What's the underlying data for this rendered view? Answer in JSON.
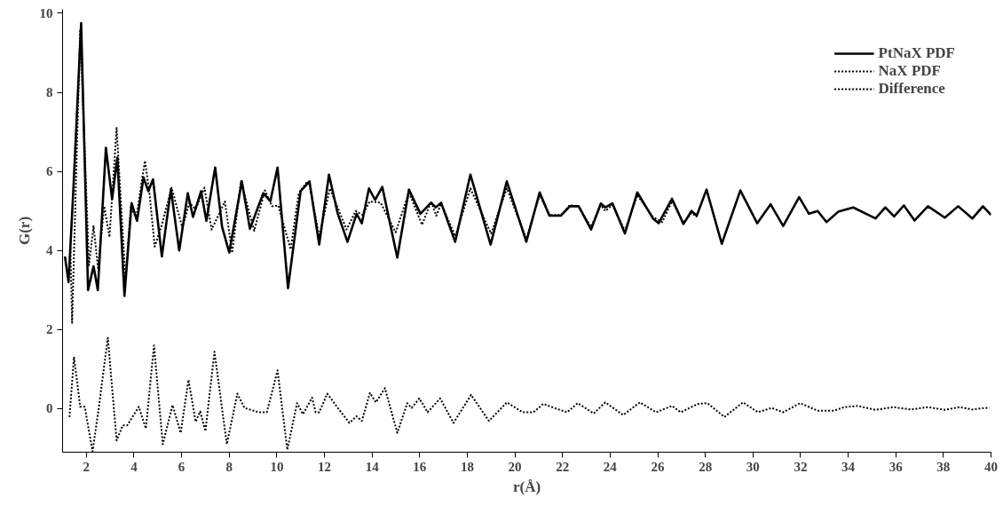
{
  "chart_data": {
    "type": "line",
    "xlabel": "r(Å)",
    "ylabel": "G(r)",
    "xlim": [
      1,
      40
    ],
    "ylim": [
      -1.1,
      10.1
    ],
    "xticks": [
      2,
      4,
      6,
      8,
      10,
      12,
      14,
      16,
      18,
      20,
      22,
      24,
      26,
      28,
      30,
      32,
      34,
      36,
      38,
      40
    ],
    "yticks": [
      0,
      2,
      4,
      6,
      8,
      10
    ],
    "grid": false,
    "legend": "top right",
    "marker": "none",
    "series": [
      {
        "name": "PtNaX PDF",
        "color": "#000000",
        "line_style": "solid",
        "x": [
          1.1,
          1.25,
          1.45,
          1.78,
          2.07,
          2.3,
          2.48,
          2.82,
          3.08,
          3.3,
          3.6,
          3.9,
          4.13,
          4.4,
          4.6,
          4.8,
          5.17,
          5.55,
          5.9,
          6.26,
          6.48,
          6.82,
          7.04,
          7.41,
          7.7,
          8.0,
          8.53,
          8.87,
          9.43,
          9.73,
          10.03,
          10.47,
          11.0,
          11.37,
          11.78,
          12.19,
          12.56,
          12.97,
          13.35,
          13.57,
          13.87,
          14.13,
          14.43,
          15.06,
          15.55,
          16.03,
          16.48,
          16.67,
          16.9,
          17.49,
          18.13,
          18.98,
          19.66,
          20.48,
          21.04,
          21.45,
          21.93,
          22.31,
          22.68,
          23.2,
          23.61,
          23.8,
          24.1,
          24.62,
          25.14,
          25.8,
          26.04,
          26.6,
          27.08,
          27.42,
          27.64,
          28.05,
          28.69,
          29.47,
          30.18,
          30.74,
          31.27,
          31.94,
          32.35,
          32.72,
          33.09,
          33.58,
          34.21,
          35.15,
          35.56,
          35.93,
          36.34,
          36.79,
          37.35,
          38.06,
          38.62,
          39.22,
          39.66,
          40.0
        ],
        "values": [
          3.85,
          3.2,
          5.5,
          9.75,
          3.0,
          3.6,
          3.0,
          6.6,
          5.3,
          6.35,
          2.85,
          5.2,
          4.75,
          5.85,
          5.5,
          5.8,
          3.85,
          5.55,
          4.0,
          5.45,
          4.85,
          5.5,
          4.75,
          6.1,
          4.6,
          3.95,
          5.75,
          4.55,
          5.45,
          5.25,
          6.1,
          3.05,
          5.5,
          5.75,
          4.15,
          5.92,
          4.93,
          4.22,
          4.93,
          4.69,
          5.57,
          5.28,
          5.61,
          3.82,
          5.54,
          4.93,
          5.21,
          5.09,
          5.21,
          4.22,
          5.92,
          4.15,
          5.75,
          4.22,
          5.47,
          4.88,
          4.88,
          5.12,
          5.12,
          4.53,
          5.19,
          5.09,
          5.19,
          4.43,
          5.47,
          4.81,
          4.69,
          5.31,
          4.67,
          5.0,
          4.88,
          5.54,
          4.17,
          5.52,
          4.69,
          5.17,
          4.62,
          5.35,
          4.93,
          5.0,
          4.72,
          4.98,
          5.09,
          4.81,
          5.09,
          4.86,
          5.14,
          4.76,
          5.12,
          4.83,
          5.12,
          4.81,
          5.12,
          4.9
        ]
      },
      {
        "name": "NaX PDF",
        "color": "#000000",
        "line_style": "dotted",
        "x": [
          1.33,
          1.4,
          1.74,
          2.11,
          2.3,
          2.49,
          2.75,
          2.97,
          3.27,
          3.64,
          3.87,
          4.09,
          4.46,
          4.65,
          4.87,
          5.17,
          5.58,
          6.03,
          6.33,
          6.59,
          6.96,
          7.26,
          7.82,
          8.12,
          8.49,
          9.05,
          9.5,
          9.8,
          10.06,
          10.58,
          10.92,
          11.29,
          11.37,
          11.78,
          12.23,
          12.93,
          13.31,
          13.6,
          13.9,
          14.36,
          14.99,
          15.55,
          16.1,
          16.48,
          16.7,
          16.9,
          17.5,
          18.13,
          19.0,
          19.66,
          20.48,
          21.04,
          21.45,
          21.93,
          22.31,
          22.68,
          23.2,
          23.61,
          23.8,
          24.1,
          24.62,
          25.14,
          25.8,
          26.19,
          26.6,
          27.08,
          27.42,
          27.64
        ],
        "values": [
          4.06,
          2.17,
          9.6,
          3.63,
          4.62,
          3.56,
          5.12,
          4.34,
          7.1,
          3.28,
          5.12,
          4.81,
          6.27,
          5.45,
          4.1,
          4.65,
          5.59,
          4.58,
          5.21,
          5.05,
          5.59,
          4.53,
          5.24,
          3.94,
          5.75,
          4.5,
          5.52,
          5.12,
          5.14,
          4.03,
          5.45,
          5.75,
          5.68,
          4.35,
          5.57,
          4.53,
          5.0,
          4.9,
          5.24,
          5.21,
          4.46,
          5.47,
          4.65,
          5.24,
          4.88,
          5.19,
          4.36,
          5.57,
          4.43,
          5.57,
          4.3,
          5.4,
          4.9,
          4.9,
          5.15,
          5.1,
          4.6,
          5.15,
          5.0,
          5.15,
          4.5,
          5.4,
          4.85,
          4.72,
          5.25,
          4.7,
          4.95,
          4.85
        ]
      },
      {
        "name": "Difference",
        "color": "#000000",
        "line_style": "dotted",
        "x": [
          1.29,
          1.48,
          1.74,
          1.93,
          2.26,
          2.52,
          2.9,
          3.27,
          3.53,
          3.72,
          4.2,
          4.5,
          4.84,
          5.21,
          5.62,
          5.96,
          6.29,
          6.59,
          6.78,
          7.0,
          7.38,
          7.9,
          8.34,
          8.64,
          9.24,
          9.58,
          10.03,
          10.44,
          10.85,
          11.1,
          11.48,
          11.63,
          11.78,
          12.12,
          12.56,
          13.05,
          13.35,
          13.57,
          13.91,
          14.16,
          14.54,
          15.06,
          15.48,
          15.66,
          15.99,
          16.33,
          16.86,
          17.42,
          18.16,
          18.91,
          19.66,
          20.33,
          20.78,
          21.19,
          21.74,
          22.19,
          22.64,
          23.31,
          23.8,
          24.55,
          25.25,
          25.93,
          26.6,
          26.97,
          27.68,
          28.09,
          28.8,
          29.58,
          30.21,
          30.78,
          31.27,
          31.98,
          32.72,
          33.4,
          33.84,
          34.4,
          35.15,
          35.9,
          36.64,
          37.35,
          38.06,
          38.68,
          39.22,
          39.93
        ],
        "values": [
          -0.21,
          1.31,
          0.05,
          0.05,
          -1.08,
          0.02,
          1.79,
          -0.8,
          -0.42,
          -0.42,
          0.05,
          -0.5,
          1.6,
          -0.9,
          0.09,
          -0.61,
          0.73,
          -0.33,
          -0.07,
          -0.57,
          1.44,
          -0.9,
          0.38,
          0.02,
          -0.09,
          -0.09,
          0.97,
          -1.04,
          0.14,
          -0.14,
          0.28,
          -0.09,
          -0.09,
          0.38,
          0.02,
          -0.36,
          -0.19,
          -0.31,
          0.4,
          0.16,
          0.52,
          -0.61,
          0.14,
          0.02,
          0.26,
          -0.09,
          0.26,
          -0.36,
          0.35,
          -0.31,
          0.16,
          -0.09,
          -0.09,
          0.12,
          0.0,
          -0.09,
          0.14,
          -0.12,
          0.16,
          -0.16,
          0.16,
          -0.09,
          0.07,
          -0.09,
          0.12,
          0.14,
          -0.21,
          0.16,
          -0.09,
          0.02,
          -0.09,
          0.14,
          -0.05,
          -0.05,
          0.04,
          0.07,
          -0.03,
          0.04,
          -0.02,
          0.04,
          -0.03,
          0.04,
          -0.02,
          0.03
        ]
      }
    ]
  }
}
